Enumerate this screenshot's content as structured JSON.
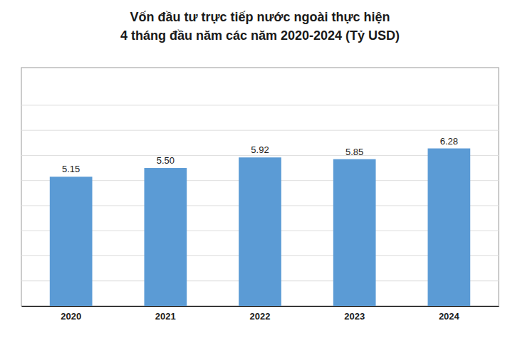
{
  "chart_data": {
    "type": "bar",
    "title": "Vốn đầu tư trực tiếp nước ngoài thực hiện\n4 tháng đầu năm các năm 2020-2024 (Tỷ USD)",
    "categories": [
      "2020",
      "2021",
      "2022",
      "2023",
      "2024"
    ],
    "values": [
      5.15,
      5.5,
      5.92,
      5.85,
      6.28
    ],
    "value_labels": [
      "5.15",
      "5.50",
      "5.92",
      "5.85",
      "6.28"
    ],
    "color": "#5b9bd5",
    "ylim": [
      0,
      9.5
    ],
    "yticks": [
      1,
      2,
      3,
      4,
      5,
      6,
      7,
      8
    ],
    "grid": true,
    "data_labels": true,
    "tick_labels": "x"
  }
}
